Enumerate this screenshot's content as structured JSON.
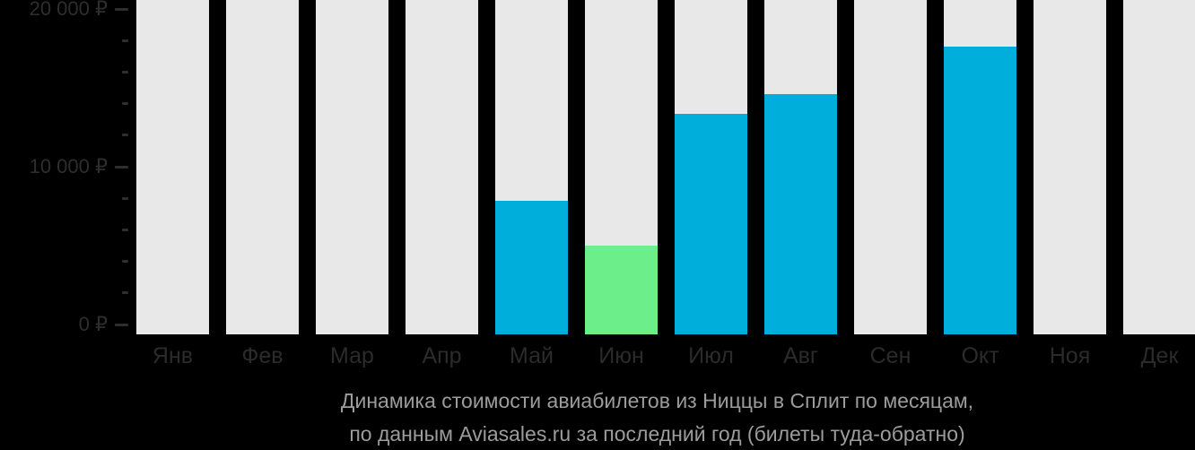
{
  "chart_data": {
    "type": "bar",
    "title": "Динамика стоимости авиабилетов из Ниццы в Сплит по месяцам, по данным Aviasales.ru за последний год (билеты туда-обратно)",
    "caption_lines": [
      "Динамика стоимости авиабилетов из Ниццы в Сплит по месяцам,",
      "по данным Aviasales.ru за последний год (билеты туда-обратно)"
    ],
    "categories": [
      "Янв",
      "Фев",
      "Мар",
      "Апр",
      "Май",
      "Июн",
      "Июл",
      "Авг",
      "Сен",
      "Окт",
      "Ноя",
      "Дек"
    ],
    "values": [
      null,
      null,
      null,
      null,
      7850,
      5000,
      13350,
      14600,
      null,
      17600,
      null,
      null
    ],
    "min_index": 5,
    "currency": "₽",
    "xlabel": "",
    "ylabel": "",
    "yaxis": {
      "range": [
        0,
        20000
      ],
      "minor_tick_step": 2000,
      "major_ticks": [
        {
          "value": 0,
          "label": "0 ₽"
        },
        {
          "value": 10000,
          "label": "10 000 ₽"
        },
        {
          "value": 20000,
          "label": "20 000 ₽"
        }
      ]
    },
    "legend": "none",
    "grid": "off",
    "colors": {
      "bar_default": "#00AEDB",
      "bar_min": "#6CEE8B",
      "bar_placeholder": "#E8E8E8",
      "axis_text": "#2E2E2E",
      "caption_text": "#9C9C9C",
      "background": "#000000"
    }
  }
}
